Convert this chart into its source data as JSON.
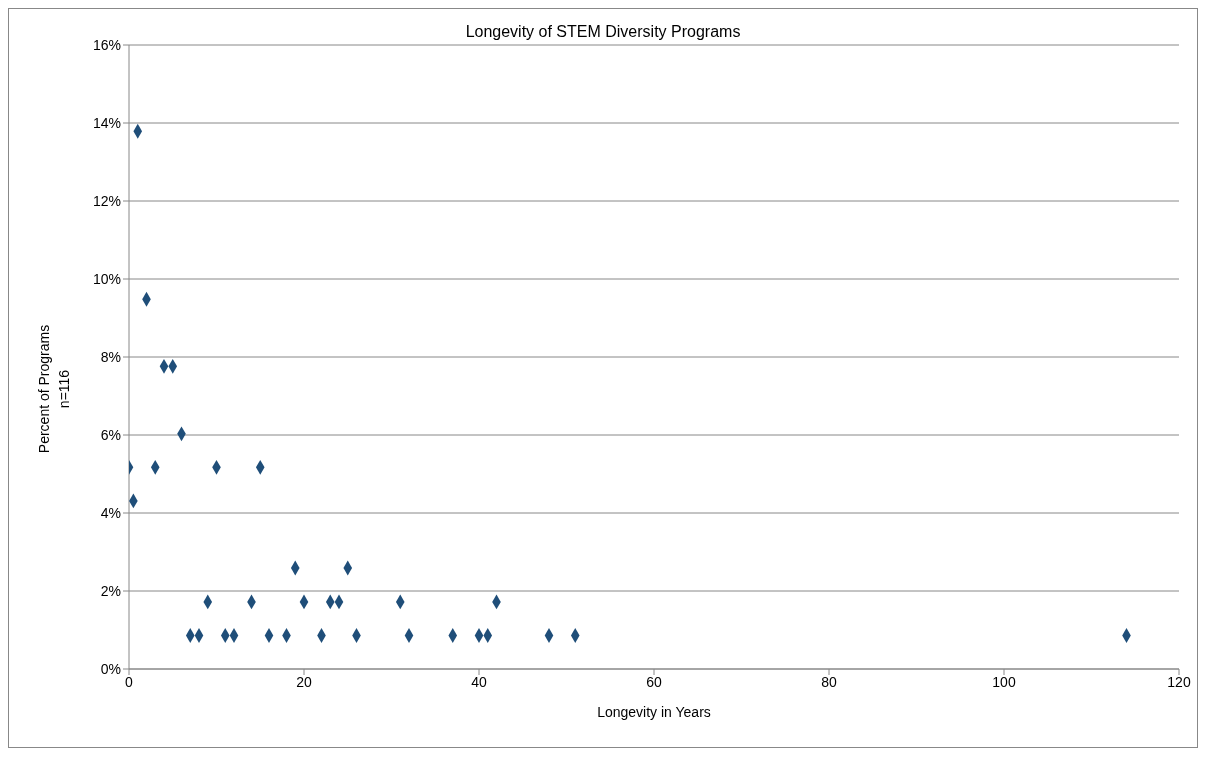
{
  "chart_data": {
    "type": "scatter",
    "title": "Longevity of STEM Diversity Programs",
    "xlabel": "Longevity in Years",
    "ylabel": "Percent of Programs\nn=116",
    "x": [
      0,
      0.5,
      1,
      2,
      3,
      4,
      5,
      6,
      7,
      8,
      9,
      10,
      11,
      12,
      14,
      15,
      16,
      18,
      19,
      20,
      22,
      23,
      24,
      25,
      26,
      31,
      32,
      37,
      40,
      41,
      42,
      48,
      51,
      114
    ],
    "values": [
      5.17,
      4.31,
      13.79,
      9.48,
      5.17,
      7.76,
      7.76,
      6.03,
      0.86,
      0.86,
      1.72,
      5.17,
      0.86,
      0.86,
      1.72,
      5.17,
      0.86,
      0.86,
      2.59,
      1.72,
      0.86,
      1.72,
      1.72,
      2.59,
      0.86,
      1.72,
      0.86,
      0.86,
      0.86,
      0.86,
      1.72,
      0.86,
      0.86,
      0.86
    ],
    "color": "#1f4e79",
    "marker": "diamond",
    "grid": "y",
    "legend": false,
    "xlim": [
      0,
      120
    ],
    "xticks": [
      0,
      20,
      40,
      60,
      80,
      100,
      120
    ],
    "ylim": [
      0,
      16
    ],
    "yticks": [
      {
        "value": 0,
        "label": "0%"
      },
      {
        "value": 2,
        "label": "2%"
      },
      {
        "value": 4,
        "label": "4%"
      },
      {
        "value": 6,
        "label": "6%"
      },
      {
        "value": 8,
        "label": "8%"
      },
      {
        "value": 10,
        "label": "10%"
      },
      {
        "value": 12,
        "label": "12%"
      },
      {
        "value": 14,
        "label": "14%"
      },
      {
        "value": 16,
        "label": "16%"
      }
    ]
  }
}
